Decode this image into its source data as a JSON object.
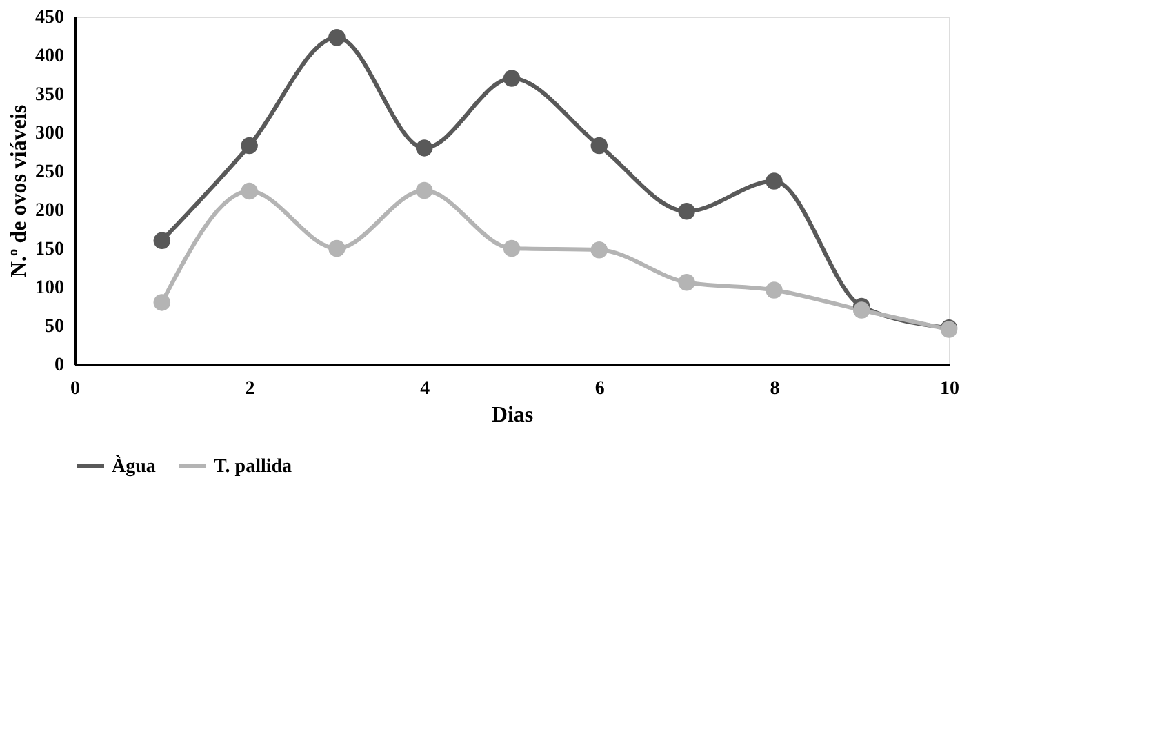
{
  "chart_data": {
    "type": "line",
    "xlabel": "Dias",
    "ylabel": "N.º de ovos viáveis",
    "x": [
      1,
      2,
      3,
      4,
      5,
      6,
      7,
      8,
      9,
      10
    ],
    "series": [
      {
        "name": "Àgua",
        "color": "#595959",
        "values": [
          160,
          283,
          423,
          280,
          370,
          283,
          198,
          237,
          75,
          47
        ]
      },
      {
        "name": "T. pallida",
        "color": "#b4b4b4",
        "values": [
          80,
          224,
          150,
          225,
          150,
          148,
          106,
          96,
          70,
          45
        ]
      }
    ],
    "xlim": [
      0,
      10
    ],
    "xticks": [
      0,
      2,
      4,
      6,
      8,
      10
    ],
    "ylim": [
      0,
      450
    ],
    "yticks": [
      0,
      50,
      100,
      150,
      200,
      250,
      300,
      350,
      400,
      450
    ],
    "grid": false,
    "legend": "bottom",
    "marker": "circle",
    "line_style": "solid"
  }
}
